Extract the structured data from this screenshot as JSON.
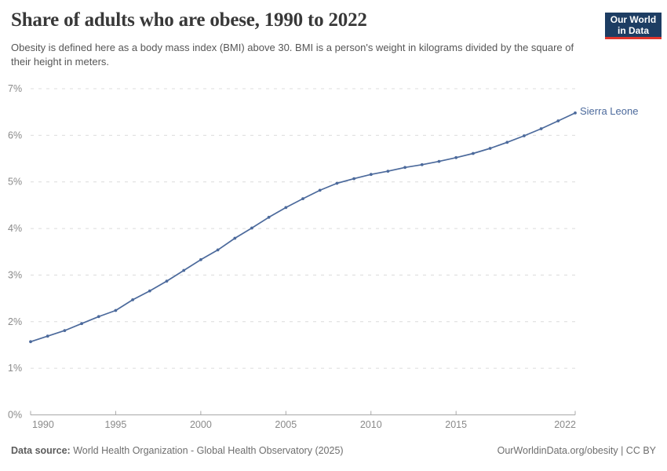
{
  "header": {
    "title": "Share of adults who are obese, 1990 to 2022",
    "subtitle": "Obesity is defined here as a body mass index (BMI) above 30. BMI is a person's weight in kilograms divided by the square of their height in meters.",
    "logo": {
      "line1": "Our World",
      "line2": "in Data",
      "bg_color": "#1d3d63",
      "accent_color": "#e0362d"
    }
  },
  "chart_data": {
    "type": "line",
    "title": "Share of adults who are obese, 1990 to 2022",
    "xlabel": "",
    "ylabel": "",
    "xlim": [
      1990,
      2022
    ],
    "ylim": [
      0,
      7
    ],
    "grid": "horizontal-dashed",
    "legend_position": "end-of-line-label",
    "x_ticks": [
      1990,
      1995,
      2000,
      2005,
      2010,
      2015,
      2022
    ],
    "y_ticks": [
      0,
      1,
      2,
      3,
      4,
      5,
      6,
      7
    ],
    "y_tick_labels": [
      "0%",
      "1%",
      "2%",
      "3%",
      "4%",
      "5%",
      "6%",
      "7%"
    ],
    "series": [
      {
        "name": "Sierra Leone",
        "color": "#4c6a9c",
        "x": [
          1990,
          1991,
          1992,
          1993,
          1994,
          1995,
          1996,
          1997,
          1998,
          1999,
          2000,
          2001,
          2002,
          2003,
          2004,
          2005,
          2006,
          2007,
          2008,
          2009,
          2010,
          2011,
          2012,
          2013,
          2014,
          2015,
          2016,
          2017,
          2018,
          2019,
          2020,
          2021,
          2022
        ],
        "values": [
          1.57,
          1.69,
          1.81,
          1.96,
          2.11,
          2.24,
          2.47,
          2.66,
          2.87,
          3.1,
          3.33,
          3.54,
          3.79,
          4.01,
          4.24,
          4.45,
          4.64,
          4.82,
          4.97,
          5.07,
          5.16,
          5.23,
          5.31,
          5.37,
          5.44,
          5.52,
          5.61,
          5.72,
          5.85,
          5.99,
          6.14,
          6.31,
          6.48
        ]
      }
    ],
    "colors": {
      "gridline": "#dcdcdc",
      "axis": "#a8a8a8",
      "tick_label": "#8a8a8a"
    }
  },
  "footer": {
    "datasource_label": "Data source:",
    "datasource_text": " World Health Organization - Global Health Observatory (2025)",
    "link_text": "OurWorldinData.org/obesity | CC BY"
  }
}
